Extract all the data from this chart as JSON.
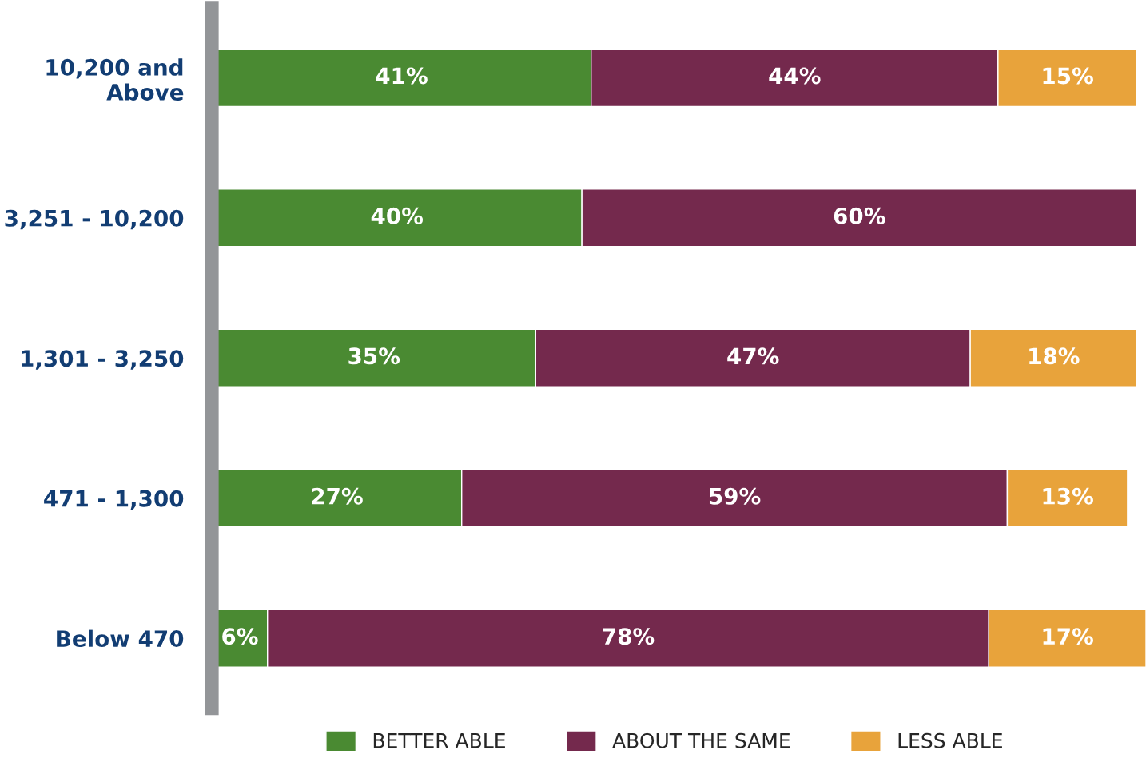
{
  "chart_data": {
    "type": "bar",
    "orientation": "horizontal",
    "stacked": true,
    "legend": "bottom",
    "categories": [
      "10,200 and\nAbove",
      "3,251 - 10,200",
      "1,301 - 3,250",
      "471 - 1,300",
      "Below 470"
    ],
    "series": [
      {
        "name": "BETTER ABLE",
        "color": "#4a8a32",
        "values": [
          41,
          40,
          35,
          27,
          6
        ],
        "value_labels": [
          "41%",
          "40%",
          "35%",
          "27%",
          "6%"
        ]
      },
      {
        "name": "ABOUT THE SAME",
        "color": "#74294d",
        "values": [
          44,
          60,
          47,
          59,
          78
        ],
        "value_labels": [
          "44%",
          "60%",
          "47%",
          "59%",
          "78%"
        ]
      },
      {
        "name": "LESS ABLE",
        "color": "#e8a33b",
        "values": [
          15,
          null,
          18,
          13,
          17
        ],
        "value_labels": [
          "15%",
          null,
          "18%",
          "13%",
          "17%"
        ]
      }
    ]
  }
}
